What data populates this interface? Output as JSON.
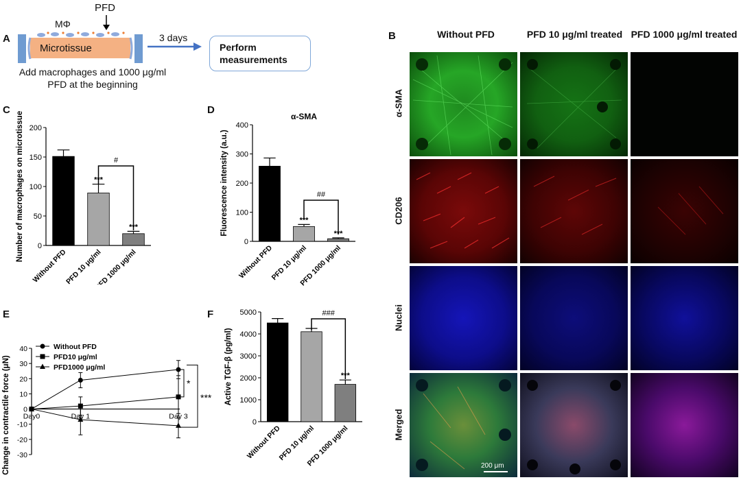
{
  "panel_a": {
    "letter": "A",
    "pfd_label": "PFD",
    "macrophage_label": "MΦ",
    "microtissue_label": "Microtissue",
    "caption_line1": "Add macrophages and 1000 μg/ml",
    "caption_line2": "PFD at the beginning",
    "arrow_label": "3 days",
    "box_line1": "Perform",
    "box_line2": "measurements"
  },
  "panel_b": {
    "letter": "B",
    "columns": [
      "Without PFD",
      "PFD 10 μg/ml treated",
      "PFD 1000 μg/ml treated"
    ],
    "rows": [
      "α-SMA",
      "CD206",
      "Nuclei",
      "Merged"
    ],
    "scale_bar": "200 μm"
  },
  "chart_data": [
    {
      "panel": "C",
      "type": "bar",
      "title": "",
      "ylabel": "Number of macrophages on microtissue",
      "categories": [
        "Without PFD",
        "PFD 10 μg/ml",
        "PFD 1000 μg/ml"
      ],
      "values": [
        151,
        89,
        20
      ],
      "errors": [
        11,
        15,
        4
      ],
      "colors": [
        "#000000",
        "#a6a6a6",
        "#7f7f7f"
      ],
      "ylim": [
        0,
        200
      ],
      "yticks": [
        "0",
        "50",
        "100",
        "150",
        "200"
      ],
      "significance": [
        "",
        "***",
        "***"
      ],
      "bracket": {
        "label": "#",
        "from": 1,
        "to": 2
      }
    },
    {
      "panel": "D",
      "type": "bar",
      "title": "α-SMA",
      "ylabel": "Fluorescence intensity (a.u.)",
      "categories": [
        "Without PFD",
        "PFD 10 μg/ml",
        "PFD 1000 μg/ml"
      ],
      "values": [
        258,
        51,
        9
      ],
      "errors": [
        28,
        7,
        3
      ],
      "colors": [
        "#000000",
        "#a6a6a6",
        "#7f7f7f"
      ],
      "ylim": [
        0,
        400
      ],
      "yticks": [
        "0",
        "100",
        "200",
        "300",
        "400"
      ],
      "significance": [
        "",
        "***",
        "***"
      ],
      "bracket": {
        "label": "##",
        "from": 1,
        "to": 2
      }
    },
    {
      "panel": "E",
      "type": "line",
      "title": "",
      "ylabel": "Change in contractile force (μN)",
      "x": [
        "Day0",
        "Day 1",
        "Day 3"
      ],
      "x_pos": [
        0,
        1,
        3
      ],
      "series": [
        {
          "name": "Without PFD",
          "marker": "circle",
          "values": [
            0,
            19,
            26
          ],
          "errors": [
            0,
            5,
            6
          ]
        },
        {
          "name": "PFD10 μg/ml",
          "marker": "square",
          "values": [
            0,
            2,
            8
          ],
          "errors": [
            0,
            6,
            14
          ]
        },
        {
          "name": "PFD1000 μg/ml",
          "marker": "triangle",
          "values": [
            0,
            -7,
            -11
          ],
          "errors": [
            0,
            10,
            8
          ]
        }
      ],
      "ylim": [
        -30,
        40
      ],
      "yticks": [
        "40",
        "30",
        "20",
        "10",
        "0",
        "-10",
        "-20",
        "-30"
      ],
      "brackets": [
        {
          "label": "*"
        },
        {
          "label": "***"
        }
      ]
    },
    {
      "panel": "F",
      "type": "bar",
      "title": "",
      "ylabel": "Active TGF-β (pg/ml)",
      "categories": [
        "Without PFD",
        "PFD 10 μg/ml",
        "PFD 1000 μg/ml"
      ],
      "values": [
        4500,
        4100,
        1700
      ],
      "errors": [
        200,
        150,
        200
      ],
      "colors": [
        "#000000",
        "#a6a6a6",
        "#7f7f7f"
      ],
      "ylim": [
        0,
        5000
      ],
      "yticks": [
        "0",
        "1000",
        "2000",
        "3000",
        "4000",
        "5000"
      ],
      "significance": [
        "",
        "",
        "***"
      ],
      "bracket": {
        "label": "###",
        "from": 1,
        "to": 2
      }
    }
  ]
}
